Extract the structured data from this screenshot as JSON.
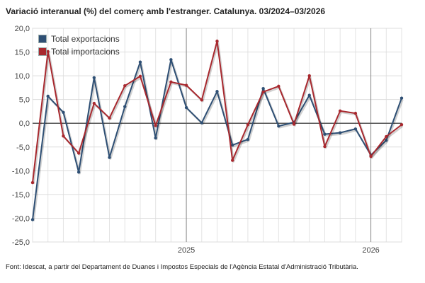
{
  "title": "Variació interanual (%) del comerç amb l'estranger. Catalunya. 03/2024–03/2026",
  "footnote": "Font: Idescat, a partir del Departament de Duanes i Impostos Especials de l'Agència Estatal d'Administració Tributària.",
  "chart_data": {
    "type": "line",
    "title": "Variació interanual (%) del comerç amb l'estranger. Catalunya. 03/2024–03/2026",
    "xlabel": "",
    "ylabel": "",
    "x": [
      "2024-03",
      "2024-04",
      "2024-05",
      "2024-06",
      "2024-07",
      "2024-08",
      "2024-09",
      "2024-10",
      "2024-11",
      "2024-12",
      "2025-01",
      "2025-02",
      "2025-03",
      "2025-04",
      "2025-05",
      "2025-06",
      "2025-07",
      "2025-08",
      "2025-09",
      "2025-10",
      "2025-11",
      "2025-12",
      "2026-01",
      "2026-02",
      "2026-03"
    ],
    "x_tick_labels": [
      {
        "x": "2025-01",
        "label": "2025"
      },
      {
        "x": "2026-01",
        "label": "2026"
      }
    ],
    "ylim": [
      -25,
      20
    ],
    "yticks": [
      "20,0",
      "15,0",
      "10,0",
      "5,0",
      "0,0",
      "-5,0",
      "-10,0",
      "-15,0",
      "-20,0",
      "-25,0"
    ],
    "grid": true,
    "legend_position": "top-left",
    "series": [
      {
        "name": "Total exportacions",
        "color": "#2e4f74",
        "values": [
          -20.3,
          5.7,
          2.3,
          -10.3,
          9.6,
          -7.2,
          3.5,
          12.9,
          -3.1,
          13.4,
          3.3,
          0.1,
          6.7,
          -4.6,
          -3.4,
          7.3,
          -0.6,
          0.2,
          5.9,
          -2.3,
          -2.0,
          -1.2,
          -6.7,
          -3.6,
          5.3
        ]
      },
      {
        "name": "Total importacions",
        "color": "#a8282e",
        "values": [
          -12.5,
          15.1,
          -2.7,
          -6.3,
          4.2,
          1.1,
          7.9,
          9.9,
          -0.5,
          8.7,
          8.0,
          4.9,
          17.3,
          -7.8,
          -0.3,
          6.6,
          7.8,
          -0.2,
          10.0,
          -4.9,
          2.6,
          2.1,
          -7.0,
          -2.8,
          -0.3
        ]
      }
    ]
  }
}
